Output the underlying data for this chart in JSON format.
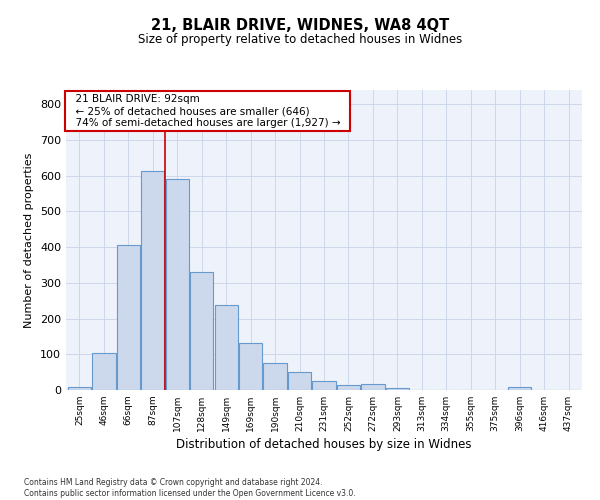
{
  "title1": "21, BLAIR DRIVE, WIDNES, WA8 4QT",
  "title2": "Size of property relative to detached houses in Widnes",
  "xlabel": "Distribution of detached houses by size in Widnes",
  "ylabel": "Number of detached properties",
  "footnote": "Contains HM Land Registry data © Crown copyright and database right 2024.\nContains public sector information licensed under the Open Government Licence v3.0.",
  "bar_labels": [
    "25sqm",
    "46sqm",
    "66sqm",
    "87sqm",
    "107sqm",
    "128sqm",
    "149sqm",
    "169sqm",
    "190sqm",
    "210sqm",
    "231sqm",
    "252sqm",
    "272sqm",
    "293sqm",
    "313sqm",
    "334sqm",
    "355sqm",
    "375sqm",
    "396sqm",
    "416sqm",
    "437sqm"
  ],
  "bar_values": [
    8,
    105,
    405,
    613,
    592,
    330,
    237,
    132,
    75,
    50,
    25,
    13,
    16,
    5,
    0,
    0,
    0,
    0,
    8,
    0,
    0
  ],
  "bar_color": "#ccd9ed",
  "bar_edge_color": "#6699cc",
  "property_line_x": 3.0,
  "annotation_title": "21 BLAIR DRIVE: 92sqm",
  "annotation_line1": "← 25% of detached houses are smaller (646)",
  "annotation_line2": "74% of semi-detached houses are larger (1,927) →",
  "vline_color": "#cc0000",
  "annotation_box_edge_color": "#cc0000",
  "grid_color": "#c8d4e8",
  "background_color": "#eef2fa",
  "ylim": [
    0,
    840
  ],
  "yticks": [
    0,
    100,
    200,
    300,
    400,
    500,
    600,
    700,
    800
  ]
}
